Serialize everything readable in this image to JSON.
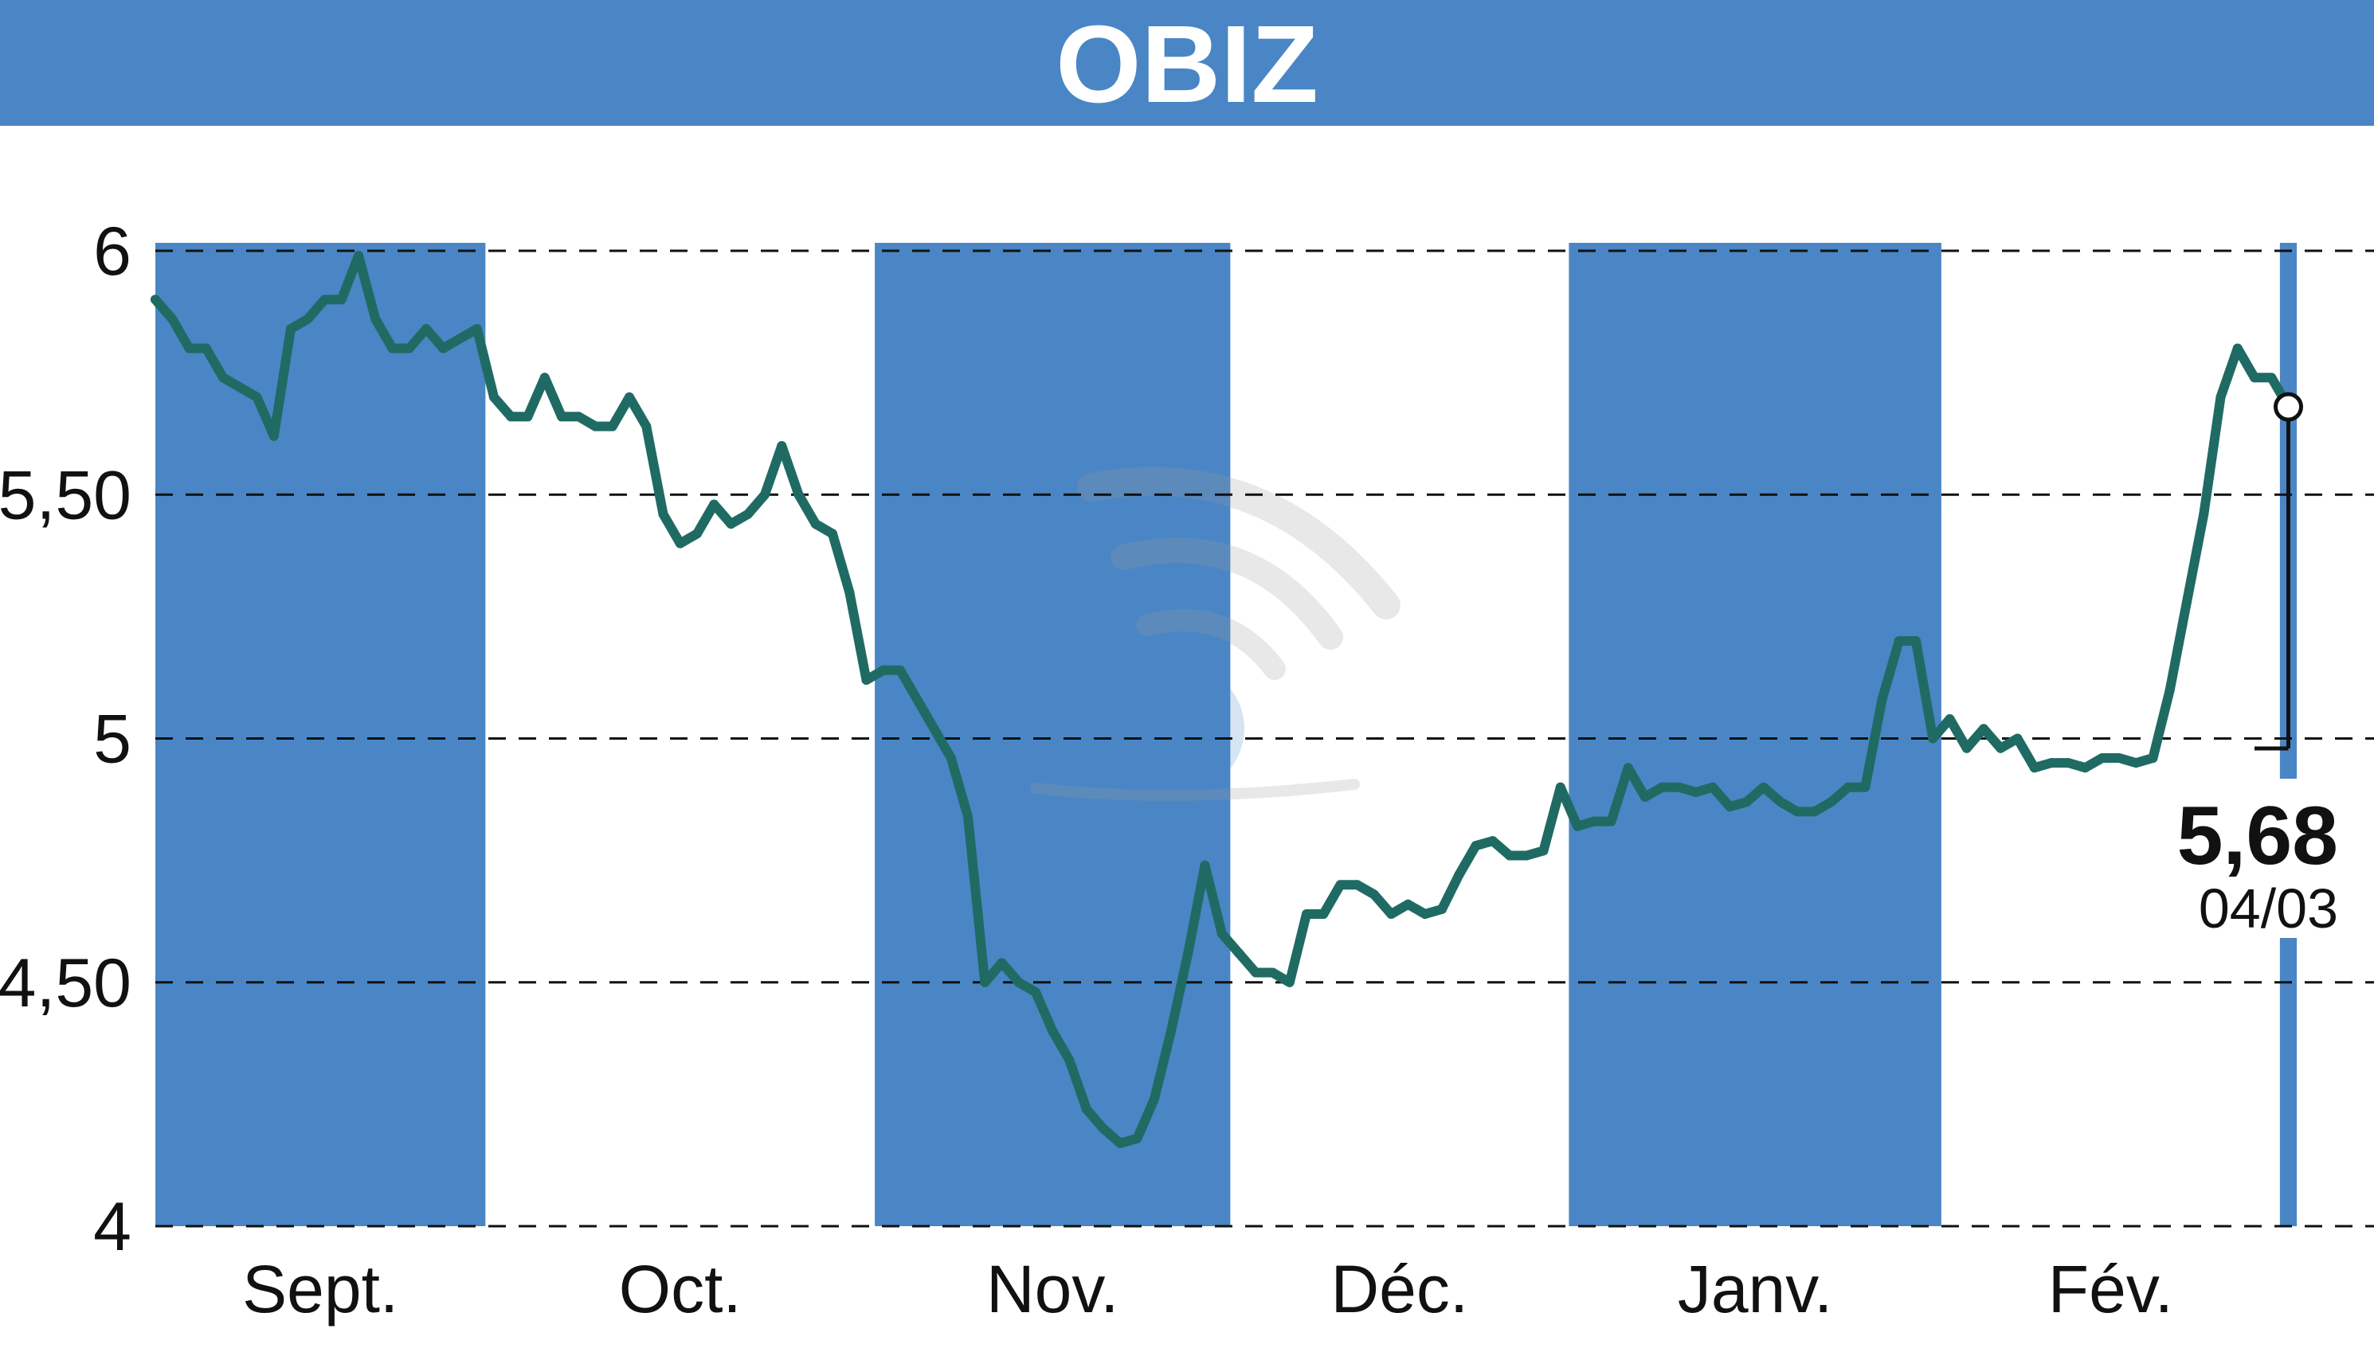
{
  "colors": {
    "banner": "#4a86c5",
    "month_band": "#4a86c5",
    "line": "#1f6b63",
    "grid": "#111111",
    "background": "#ffffff"
  },
  "watermark_icon": "wifi-globe-watermark-icon",
  "chart_data": {
    "type": "line",
    "title": "OBIZ",
    "xlabel": "",
    "ylabel": "",
    "ylim": [
      4,
      6
    ],
    "yticks": [
      {
        "value": 6,
        "label": "6"
      },
      {
        "value": 5.5,
        "label": "5,50"
      },
      {
        "value": 5,
        "label": "5"
      },
      {
        "value": 4.5,
        "label": "4,50"
      },
      {
        "value": 4,
        "label": "4"
      }
    ],
    "grid": "horizontal dashed",
    "months": [
      {
        "label": "Sept.",
        "start": 0,
        "end": 19.5,
        "shaded": true
      },
      {
        "label": "Oct.",
        "start": 19.5,
        "end": 42.5,
        "shaded": false
      },
      {
        "label": "Nov.",
        "start": 42.5,
        "end": 63.5,
        "shaded": true
      },
      {
        "label": "Déc.",
        "start": 63.5,
        "end": 83.5,
        "shaded": false
      },
      {
        "label": "Janv.",
        "start": 83.5,
        "end": 105.5,
        "shaded": true
      },
      {
        "label": "Fév.",
        "start": 105.5,
        "end": 125.5,
        "shaded": false
      },
      {
        "label": "",
        "start": 125.5,
        "end": 126.5,
        "shaded": true
      }
    ],
    "values": [
      5.9,
      5.86,
      5.8,
      5.8,
      5.74,
      5.72,
      5.7,
      5.62,
      5.84,
      5.86,
      5.9,
      5.9,
      5.99,
      5.86,
      5.8,
      5.8,
      5.84,
      5.8,
      5.82,
      5.84,
      5.7,
      5.66,
      5.66,
      5.74,
      5.66,
      5.66,
      5.64,
      5.64,
      5.7,
      5.64,
      5.46,
      5.4,
      5.42,
      5.48,
      5.44,
      5.46,
      5.5,
      5.6,
      5.5,
      5.44,
      5.42,
      5.3,
      5.12,
      5.14,
      5.14,
      5.08,
      5.02,
      4.96,
      4.84,
      4.5,
      4.54,
      4.5,
      4.48,
      4.4,
      4.34,
      4.24,
      4.2,
      4.17,
      4.18,
      4.26,
      4.4,
      4.56,
      4.74,
      4.6,
      4.56,
      4.52,
      4.52,
      4.5,
      4.64,
      4.64,
      4.7,
      4.7,
      4.68,
      4.64,
      4.66,
      4.64,
      4.65,
      4.72,
      4.78,
      4.79,
      4.76,
      4.76,
      4.77,
      4.9,
      4.82,
      4.83,
      4.83,
      4.94,
      4.88,
      4.9,
      4.9,
      4.89,
      4.9,
      4.86,
      4.87,
      4.9,
      4.87,
      4.85,
      4.85,
      4.87,
      4.9,
      4.9,
      5.08,
      5.2,
      5.2,
      5.0,
      5.04,
      4.98,
      5.02,
      4.98,
      5.0,
      4.94,
      4.95,
      4.95,
      4.94,
      4.96,
      4.96,
      4.95,
      4.96,
      5.1,
      5.28,
      5.46,
      5.7,
      5.8,
      5.74,
      5.74,
      5.68
    ],
    "last_value": "5,68",
    "last_date": "04/03"
  }
}
